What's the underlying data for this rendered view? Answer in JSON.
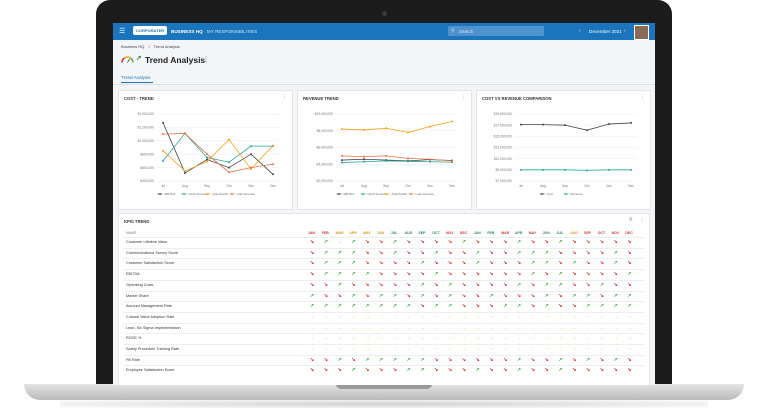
{
  "appbar": {
    "logo": "CORPORATER",
    "nav": [
      "BUSINESS HQ",
      "MY RESPONSIBILITIES"
    ],
    "search_placeholder": "Search",
    "date": "December 2021",
    "brand_color": "#1b75bc"
  },
  "breadcrumb": [
    "Business HQ",
    "Trend Analysis"
  ],
  "page": {
    "title": "Trend Analysis",
    "tab": "Trend Analysis"
  },
  "chart_data": [
    {
      "type": "line",
      "title": "COST - TREND",
      "categories": [
        "Jul",
        "Aug",
        "Sep",
        "Oct",
        "Nov",
        "Dec"
      ],
      "ylim": [
        400000,
        1400000
      ],
      "yticks": [
        "$1,400,000",
        "$1,200,000",
        "$1,000,000",
        "$800,000",
        "$600,000",
        "$400,000"
      ],
      "series": [
        {
          "name": "EBITDA",
          "color": "#444444",
          "values": [
            1270000,
            520000,
            720000,
            600000,
            800000,
            500000
          ]
        },
        {
          "name": "North America",
          "color": "#26a69a",
          "values": [
            700000,
            1110000,
            750000,
            680000,
            920000,
            920000
          ]
        },
        {
          "name": "Asia Pacific",
          "color": "#f7a21b",
          "values": [
            850000,
            550000,
            690000,
            1020000,
            580000,
            930000
          ]
        },
        {
          "name": "Latin America",
          "color": "#e8714a",
          "values": [
            1100000,
            1110000,
            800000,
            530000,
            600000,
            650000
          ]
        }
      ]
    },
    {
      "type": "line",
      "title": "REVENUE TREND",
      "categories": [
        "Jul",
        "Aug",
        "Sep",
        "Oct",
        "Nov",
        "Dec"
      ],
      "ylim": [
        2000000,
        10000000
      ],
      "yticks": [
        "$10,000,000",
        "$8,000,000",
        "$6,000,000",
        "$4,000,000",
        "$2,000,000"
      ],
      "series": [
        {
          "name": "EBITDA",
          "color": "#444444",
          "values": [
            4500000,
            4600000,
            4500000,
            4400000,
            4550000,
            4450000
          ]
        },
        {
          "name": "North America",
          "color": "#26a69a",
          "values": [
            4200000,
            4300000,
            4400000,
            4350000,
            4300000,
            4250000
          ]
        },
        {
          "name": "Asia Pacific",
          "color": "#f7a21b",
          "values": [
            8200000,
            8100000,
            8300000,
            7800000,
            8500000,
            9100000
          ]
        },
        {
          "name": "Latin America",
          "color": "#e8714a",
          "values": [
            5000000,
            4900000,
            5000000,
            4700000,
            4600000,
            4400000
          ]
        }
      ]
    },
    {
      "type": "line",
      "title": "COST VS REVENUE COMPARISON",
      "categories": [
        "Jul",
        "Aug",
        "Sep",
        "Oct",
        "Nov",
        "Dec"
      ],
      "ylim": [
        7000000,
        19000000
      ],
      "yticks": [
        "$19,000,000",
        "$17,000,000",
        "$15,000,000",
        "$13,000,000",
        "$11,000,000",
        "$9,000,000",
        "$7,000,000"
      ],
      "series": [
        {
          "name": "Cost",
          "color": "#444444",
          "values": [
            17100000,
            17100000,
            17000000,
            16100000,
            17200000,
            17400000
          ]
        },
        {
          "name": "Revenue",
          "color": "#26a69a",
          "values": [
            9000000,
            9000000,
            9000000,
            8900000,
            9000000,
            9000000
          ]
        }
      ]
    }
  ],
  "kpi": {
    "title": "KPIS TREND",
    "name_header": "NAME",
    "months": [
      "JAN",
      "FEB",
      "MAR",
      "APR",
      "MAY",
      "JUN",
      "JUL",
      "AUG",
      "SEP",
      "OCT",
      "NOV",
      "DEC",
      "JAN",
      "FEB",
      "MAR",
      "APR",
      "MAY",
      "JUN",
      "JUL",
      "AUG",
      "SEP",
      "OCT",
      "NOV",
      "DEC"
    ],
    "month_colors": [
      "#cc3b3b",
      "#cc3b3b",
      "#d99a1a",
      "#d99a1a",
      "#d99a1a",
      "#d99a1a",
      "#2e8b57",
      "#2e8b57",
      "#2e8b57",
      "#2e8b57",
      "#cc3b3b",
      "#cc3b3b",
      "#2e8b57",
      "#2e8b57",
      "#cc3b3b",
      "#2e8b57",
      "#cc3b3b",
      "#2e8b57",
      "#2e8b57",
      "#d99a1a",
      "#cc3b3b",
      "#cc3b3b",
      "#cc3b3b",
      "#cc3b3b"
    ],
    "rows": [
      {
        "name": "Customer Lifetime Value",
        "trend": [
          "down",
          "up",
          "flat",
          "up",
          "down",
          "down",
          "up",
          "down",
          "down",
          "down",
          "down",
          "up",
          "down",
          "down",
          "down",
          "up",
          "down",
          "down",
          "up",
          "down",
          "down",
          "down",
          "down",
          "down"
        ]
      },
      {
        "name": "Communications Survey Score",
        "trend": [
          "down",
          "up",
          "up",
          "up",
          "down",
          "down",
          "up",
          "down",
          "down",
          "up",
          "down",
          "down",
          "up",
          "down",
          "down",
          "up",
          "up",
          "up",
          "down",
          "down",
          "down",
          "down",
          "up",
          "down"
        ]
      },
      {
        "name": "Customer Satisfaction Score",
        "trend": [
          "down",
          "up",
          "up",
          "up",
          "down",
          "down",
          "down",
          "down",
          "up",
          "down",
          "down",
          "down",
          "up",
          "down",
          "down",
          "down",
          "up",
          "up",
          "down",
          "up",
          "down",
          "down",
          "up",
          "down"
        ]
      },
      {
        "name": "EBITDA",
        "trend": [
          "down",
          "up",
          "up",
          "up",
          "up",
          "down",
          "down",
          "down",
          "down",
          "up",
          "down",
          "down",
          "down",
          "down",
          "down",
          "down",
          "up",
          "down",
          "up",
          "down",
          "down",
          "down",
          "down",
          "up"
        ]
      },
      {
        "name": "Operating Costs",
        "trend": [
          "down",
          "down",
          "up",
          "down",
          "down",
          "down",
          "down",
          "down",
          "up",
          "down",
          "up",
          "down",
          "down",
          "down",
          "down",
          "up",
          "down",
          "up",
          "up",
          "down",
          "down",
          "up",
          "down",
          "down"
        ]
      },
      {
        "name": "Market Share",
        "trend": [
          "up",
          "down",
          "down",
          "up",
          "down",
          "up",
          "up",
          "down",
          "up",
          "down",
          "up",
          "down",
          "down",
          "up",
          "down",
          "down",
          "down",
          "up",
          "down",
          "up",
          "up",
          "down",
          "up",
          "up"
        ]
      },
      {
        "name": "Account Management Rate",
        "trend": [
          "up",
          "up",
          "up",
          "up",
          "up",
          "up",
          "up",
          "up",
          "down",
          "up",
          "up",
          "down",
          "down",
          "down",
          "up",
          "up",
          "down",
          "up",
          "down",
          "down",
          "up",
          "up",
          "up",
          "up"
        ]
      },
      {
        "name": "Cultural Value Adoption Rate",
        "trend": [
          "flat",
          "flat",
          "flat",
          "flat",
          "flat",
          "flat",
          "flat",
          "flat",
          "flat",
          "flat",
          "flat",
          "flat",
          "flat",
          "flat",
          "flat",
          "flat",
          "flat",
          "flat",
          "flat",
          "flat",
          "flat",
          "flat",
          "flat",
          "flat"
        ]
      },
      {
        "name": "Lean, Six Sigma Implementation",
        "trend": [
          "flat",
          "flat",
          "flat",
          "flat",
          "flat",
          "flat",
          "flat",
          "flat",
          "flat",
          "flat",
          "flat",
          "flat",
          "flat",
          "flat",
          "flat",
          "flat",
          "flat",
          "flat",
          "flat",
          "flat",
          "flat",
          "flat",
          "flat",
          "flat"
        ]
      },
      {
        "name": "ROCE %",
        "trend": [
          "flat",
          "flat",
          "flat",
          "flat",
          "flat",
          "flat",
          "flat",
          "flat",
          "flat",
          "flat",
          "flat",
          "flat",
          "flat",
          "flat",
          "flat",
          "flat",
          "flat",
          "flat",
          "flat",
          "flat",
          "flat",
          "flat",
          "flat",
          "flat"
        ]
      },
      {
        "name": "Safety Procedure Training Rate",
        "trend": [
          "flat",
          "flat",
          "flat",
          "flat",
          "flat",
          "flat",
          "flat",
          "flat",
          "flat",
          "flat",
          "flat",
          "flat",
          "flat",
          "flat",
          "flat",
          "flat",
          "flat",
          "flat",
          "flat",
          "flat",
          "flat",
          "flat",
          "flat",
          "flat"
        ]
      },
      {
        "name": "Fill Rate",
        "trend": [
          "down",
          "down",
          "up",
          "down",
          "up",
          "up",
          "up",
          "up",
          "up",
          "down",
          "down",
          "down",
          "down",
          "down",
          "down",
          "up",
          "down",
          "down",
          "up",
          "down",
          "up",
          "down",
          "up",
          "down"
        ]
      },
      {
        "name": "Employee Satisfaction Score",
        "trend": [
          "down",
          "down",
          "down",
          "up",
          "down",
          "down",
          "down",
          "up",
          "up",
          "down",
          "down",
          "down",
          "up",
          "down",
          "down",
          "up",
          "down",
          "down",
          "up",
          "down",
          "down",
          "down",
          "down",
          "down"
        ]
      }
    ]
  }
}
